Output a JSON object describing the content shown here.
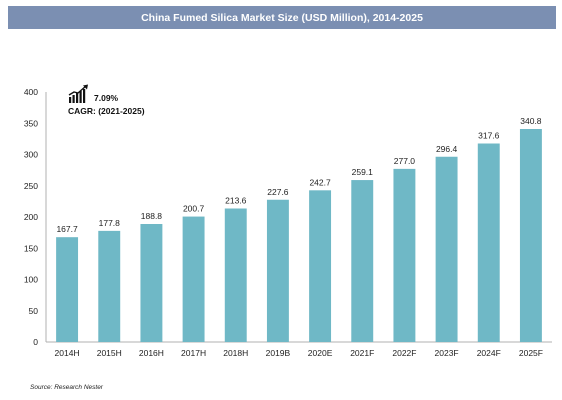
{
  "chart_data": {
    "type": "bar",
    "title": "China Fumed Silica Market Size (USD Million), 2014-2025",
    "categories": [
      "2014H",
      "2015H",
      "2016H",
      "2017H",
      "2018H",
      "2019B",
      "2020E",
      "2021F",
      "2022F",
      "2023F",
      "2024F",
      "2025F"
    ],
    "values": [
      167.7,
      177.8,
      188.8,
      200.7,
      213.6,
      227.6,
      242.7,
      259.1,
      277.0,
      296.4,
      317.6,
      340.8
    ],
    "value_labels": [
      "167.7",
      "177.8",
      "188.8",
      "200.7",
      "213.6",
      "227.6",
      "242.7",
      "259.1",
      "277.0",
      "296.4",
      "317.6",
      "340.8"
    ],
    "yticks": [
      "0",
      "50",
      "100",
      "150",
      "200",
      "250",
      "300",
      "350",
      "400"
    ],
    "ylim": [
      0,
      400
    ],
    "bar_color": "#6fb8c6",
    "title_bg": "#7b8fb2",
    "grid": false,
    "cagr": {
      "value": "7.09%",
      "label": "CAGR: (2021-2025)"
    },
    "source": "Source: Research Nester"
  }
}
